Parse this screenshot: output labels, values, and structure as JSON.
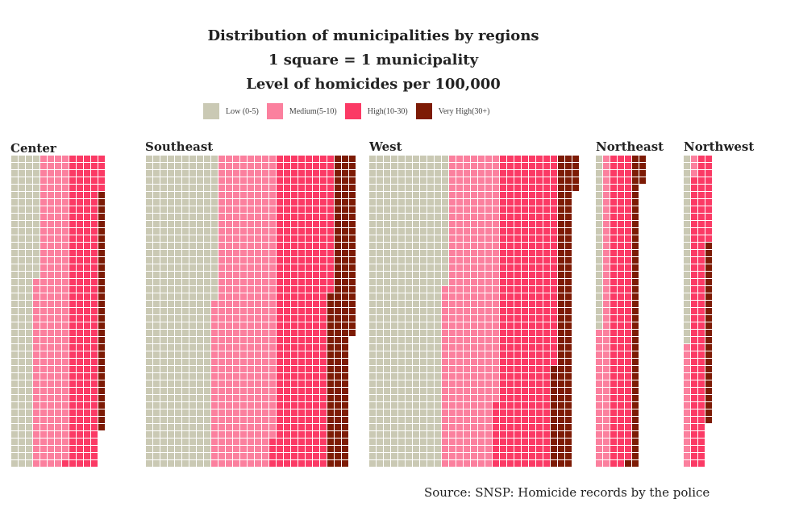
{
  "chart_data": {
    "type": "waffle",
    "title": [
      "Distribution of municipalities by regions",
      "1 square = 1 municipality",
      "Level of homicides per 100,000"
    ],
    "legend": [
      {
        "label": "Low (0-5)",
        "color": "#CAC9B4"
      },
      {
        "label": "Medium(5-10)",
        "color": "#FB809E"
      },
      {
        "label": "High(10-30)",
        "color": "#FB3A65"
      },
      {
        "label": "Very High(30+)",
        "color": "#7D1B05"
      }
    ],
    "regions": [
      {
        "name": "Center",
        "counts": [
          146,
          197,
          178,
          33
        ]
      },
      {
        "name": "Southeast",
        "counts": [
          407,
          363,
          324,
          135
        ]
      },
      {
        "name": "West",
        "counts": [
          448,
          317,
          339,
          105
        ]
      },
      {
        "name": "Northeast",
        "counts": [
          24,
          62,
          128,
          48
        ]
      },
      {
        "name": "Northwest",
        "counts": [
          26,
          20,
          95,
          25
        ]
      }
    ],
    "source": "Source: SNSP: Homicide records by the police"
  }
}
